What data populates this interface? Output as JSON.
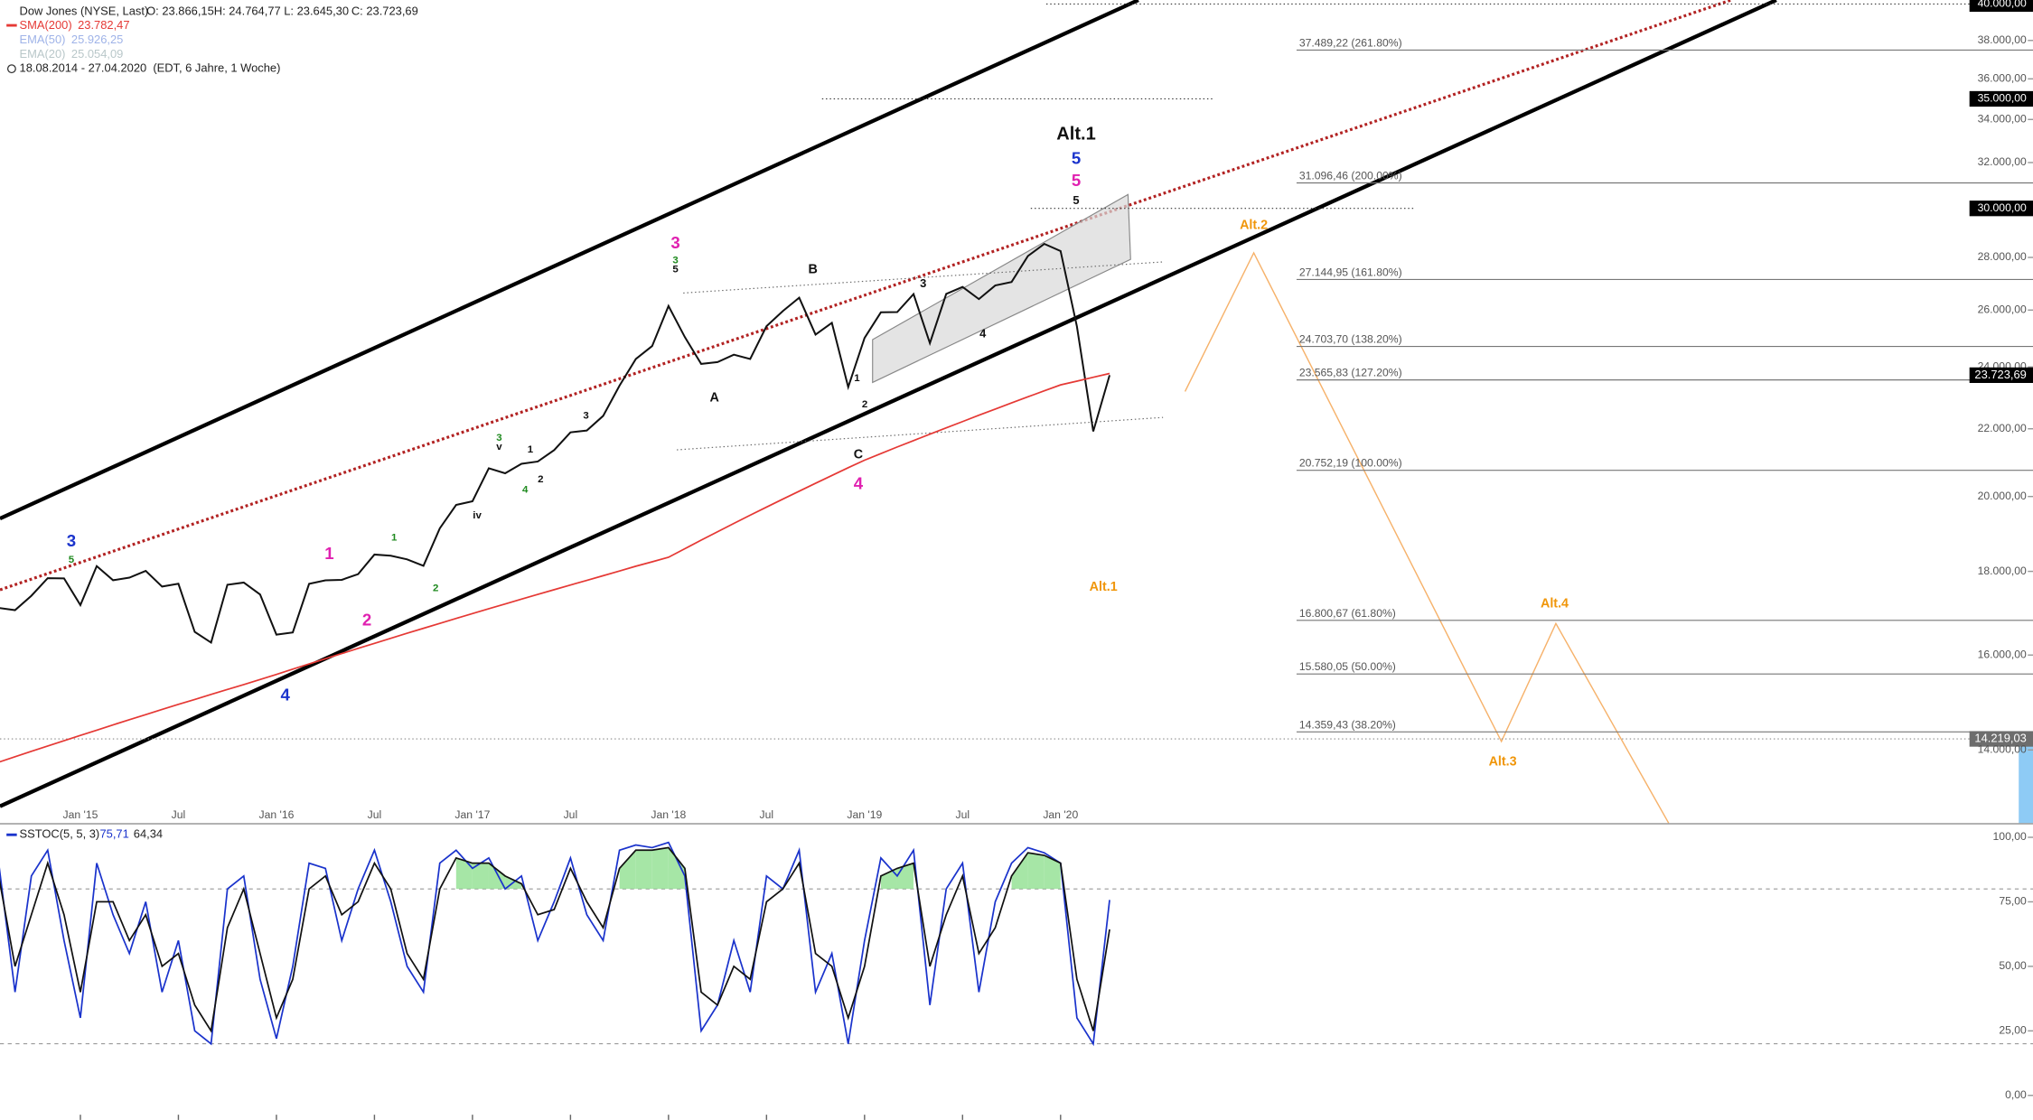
{
  "chart_data": [
    {
      "type": "line",
      "title": "Dow Jones (NYSE, Last)",
      "ohlc": [
        "O: 23.866,15",
        "H: 24.764,77",
        "L: 23.645,30",
        "C: 23.723,69"
      ],
      "date_range": "18.08.2014 - 27.04.2020",
      "subtitle": "(EDT, 6 Jahre, 1 Woche)",
      "inactive_legend": [
        {
          "name": "EMA(50)",
          "label": "25.926,25",
          "color": "#9fb3e8"
        },
        {
          "name": "EMA(20)",
          "label": "25.054,09",
          "color": "#b9c7c9"
        }
      ],
      "log": true,
      "grid": false,
      "categories": [
        null,
        null,
        null,
        null,
        null,
        "Jan '15",
        null,
        null,
        null,
        null,
        null,
        "Jul",
        null,
        null,
        null,
        null,
        null,
        "Jan '16",
        null,
        null,
        null,
        null,
        null,
        "Jul",
        null,
        null,
        null,
        null,
        null,
        "Jan '17",
        null,
        null,
        null,
        null,
        null,
        "Jul",
        null,
        null,
        null,
        null,
        null,
        "Jan '18",
        null,
        null,
        null,
        null,
        null,
        "Jul",
        null,
        null,
        null,
        null,
        null,
        "Jan '19",
        null,
        null,
        null,
        null,
        null,
        "Jul",
        null,
        null,
        null,
        null,
        null,
        "Jan '20",
        null,
        null,
        null
      ],
      "series": [
        {
          "color": "#111111",
          "values": [
            17098,
            17043,
            17391,
            17828,
            17823,
            17165,
            18133,
            17776,
            17841,
            18011,
            17620,
            17690,
            16528,
            16285,
            17664,
            17720,
            17425,
            16466,
            16517,
            17685,
            17774,
            17787,
            17930,
            18432,
            18401,
            18308,
            18142,
            19124,
            19763,
            19864,
            20812,
            20663,
            20941,
            21009,
            21350,
            21891,
            21948,
            22405,
            23377,
            24272,
            24719,
            26149,
            25029,
            24103,
            24163,
            24416,
            24271,
            25415,
            25965,
            26458,
            25116,
            25538,
            23327,
            24999,
            25916,
            25929,
            26593,
            24815,
            26600,
            26864,
            26403,
            26917,
            27046,
            28051,
            28538,
            28256,
            25409,
            21917,
            23723.69
          ]
        },
        {
          "name": "SMA(200)",
          "label": "23.782,47",
          "color": "#e53935",
          "values": [
            13760,
            13866,
            13972,
            14078,
            14184,
            14290,
            14396,
            14502,
            14608,
            14714,
            14820,
            14926,
            15032,
            15138,
            15244,
            15350,
            15460,
            15570,
            15686,
            15802,
            15918,
            16034,
            16150,
            16266,
            16382,
            16498,
            16614,
            16730,
            16846,
            16962,
            17078,
            17194,
            17310,
            17426,
            17542,
            17658,
            17774,
            17890,
            18010,
            18130,
            18245,
            18360,
            18584,
            18808,
            19032,
            19256,
            19480,
            19704,
            19928,
            20152,
            20376,
            20600,
            20825,
            21050,
            21246,
            21442,
            21638,
            21834,
            22030,
            22226,
            22422,
            22618,
            22814,
            23010,
            23206,
            23400,
            23527,
            23654,
            23782
          ]
        }
      ],
      "ylim": [
        12630,
        40220
      ],
      "yticks": [
        {
          "value": 40000,
          "label": "40.000,00"
        },
        {
          "value": 38000,
          "label": "38.000,00"
        },
        {
          "value": 36000,
          "label": "36.000,00"
        },
        {
          "value": 35000,
          "label": "35.000,00"
        },
        {
          "value": 34000,
          "label": "34.000,00"
        },
        {
          "value": 32000,
          "label": "32.000,00"
        },
        {
          "value": 30000,
          "label": "30.000,00"
        },
        {
          "value": 28000,
          "label": "28.000,00"
        },
        {
          "value": 26000,
          "label": "26.000,00"
        },
        {
          "value": 24000,
          "label": "24.000,00"
        },
        {
          "value": 22000,
          "label": "22.000,00"
        },
        {
          "value": 20000,
          "label": "20.000,00"
        },
        {
          "value": 18000,
          "label": "18.000,00"
        },
        {
          "value": 16000,
          "label": "16.000,00"
        },
        {
          "value": 14000,
          "label": "14.000,00"
        }
      ],
      "hlines": [
        40000,
        35000,
        30000
      ],
      "price_levels": [
        {
          "value": 14219.03,
          "label": "14.219,03"
        }
      ],
      "last_price": {
        "value": 23723.69,
        "label": "23.723,69"
      },
      "fib_levels": [
        {
          "value": 37489.22,
          "label": "37.489,22 (261.80%)"
        },
        {
          "value": 31096.46,
          "label": "31.096,46 (200.00%)"
        },
        {
          "value": 27144.95,
          "label": "27.144,95 (161.80%)"
        },
        {
          "value": 24703.7,
          "label": "24.703,70 (138.20%)"
        },
        {
          "value": 23565.83,
          "label": "23.565,83 (127.20%)"
        },
        {
          "value": 20752.19,
          "label": "20.752,19 (100.00%)"
        },
        {
          "value": 16800.67,
          "label": "16.800,67 (61.80%)"
        },
        {
          "value": 15580.05,
          "label": "15.580,05 (50.00%)"
        },
        {
          "value": 14359.43,
          "label": "14.359,43 (38.20%)"
        }
      ],
      "annotations": [
        {
          "text": "Alt.1",
          "color": "#111111"
        },
        {
          "text": "5",
          "color": "#1a33cc"
        },
        {
          "text": "5",
          "color": "#e020b0"
        },
        {
          "text": "5",
          "color": "#111111"
        },
        {
          "text": "3",
          "color": "#1a33cc"
        },
        {
          "text": "5",
          "color": "#1f8a1f"
        },
        {
          "text": "4",
          "color": "#1a33cc"
        },
        {
          "text": "1",
          "color": "#e020b0"
        },
        {
          "text": "2",
          "color": "#e020b0"
        },
        {
          "text": "3",
          "color": "#e020b0"
        },
        {
          "text": "4",
          "color": "#e020b0"
        },
        {
          "text": "A",
          "color": "#111111"
        },
        {
          "text": "B",
          "color": "#111111"
        },
        {
          "text": "C",
          "color": "#111111"
        },
        {
          "text": "Alt.2",
          "color": "#f0960a"
        },
        {
          "text": "Alt.1",
          "color": "#f0960a"
        },
        {
          "text": "Alt.3",
          "color": "#f0960a"
        },
        {
          "text": "Alt.4",
          "color": "#f0960a"
        },
        {
          "text": "3",
          "color": "#111111"
        },
        {
          "text": "4",
          "color": "#111111"
        },
        {
          "text": "1",
          "color": "#111111"
        },
        {
          "text": "2",
          "color": "#111111"
        },
        {
          "text": "1",
          "color": "#1f8a1f"
        },
        {
          "text": "2",
          "color": "#1f8a1f"
        },
        {
          "text": "3",
          "color": "#1f8a1f"
        },
        {
          "text": "4",
          "color": "#1f8a1f"
        },
        {
          "text": "v",
          "color": "#111111"
        },
        {
          "text": "1",
          "color": "#111111"
        },
        {
          "text": "2",
          "color": "#111111"
        },
        {
          "text": "3",
          "color": "#111111"
        },
        {
          "text": "iv",
          "color": "#111111"
        },
        {
          "text": "3",
          "color": "#1f8a1f"
        },
        {
          "text": "5",
          "color": "#111111"
        }
      ]
    },
    {
      "type": "line",
      "title": "SSTOC(5, 5, 3)",
      "k_label": "75,71",
      "d_label": "64,34",
      "series": [
        {
          "color": "#1a33cc",
          "values": [
            90,
            40,
            85,
            95,
            60,
            30,
            90,
            70,
            55,
            75,
            40,
            60,
            25,
            20,
            80,
            85,
            45,
            22,
            50,
            90,
            88,
            60,
            80,
            95,
            75,
            50,
            40,
            90,
            95,
            88,
            92,
            80,
            85,
            60,
            75,
            92,
            70,
            60,
            95,
            97,
            96,
            98,
            85,
            25,
            35,
            60,
            40,
            85,
            80,
            95,
            40,
            55,
            20,
            60,
            92,
            85,
            95,
            35,
            80,
            90,
            40,
            75,
            90,
            96,
            94,
            90,
            30,
            20,
            75.71
          ]
        },
        {
          "color": "#111111",
          "values": [
            85,
            50,
            70,
            90,
            70,
            40,
            75,
            75,
            60,
            70,
            50,
            55,
            35,
            25,
            65,
            80,
            55,
            30,
            45,
            80,
            85,
            70,
            75,
            90,
            80,
            55,
            45,
            80,
            92,
            90,
            90,
            85,
            82,
            70,
            72,
            88,
            75,
            65,
            88,
            95,
            95,
            96,
            88,
            40,
            35,
            50,
            45,
            75,
            80,
            90,
            55,
            50,
            30,
            50,
            85,
            88,
            90,
            50,
            70,
            85,
            55,
            65,
            85,
            94,
            93,
            90,
            45,
            25,
            64.34
          ]
        }
      ],
      "bands": [
        80,
        20
      ],
      "ylim": [
        -9.5,
        105
      ],
      "yticks": [
        {
          "value": 100,
          "label": "100,00"
        },
        {
          "value": 75,
          "label": "75,00"
        },
        {
          "value": 50,
          "label": "50,00"
        },
        {
          "value": 25,
          "label": "25,00"
        },
        {
          "value": 0,
          "label": "0,00"
        }
      ]
    }
  ]
}
